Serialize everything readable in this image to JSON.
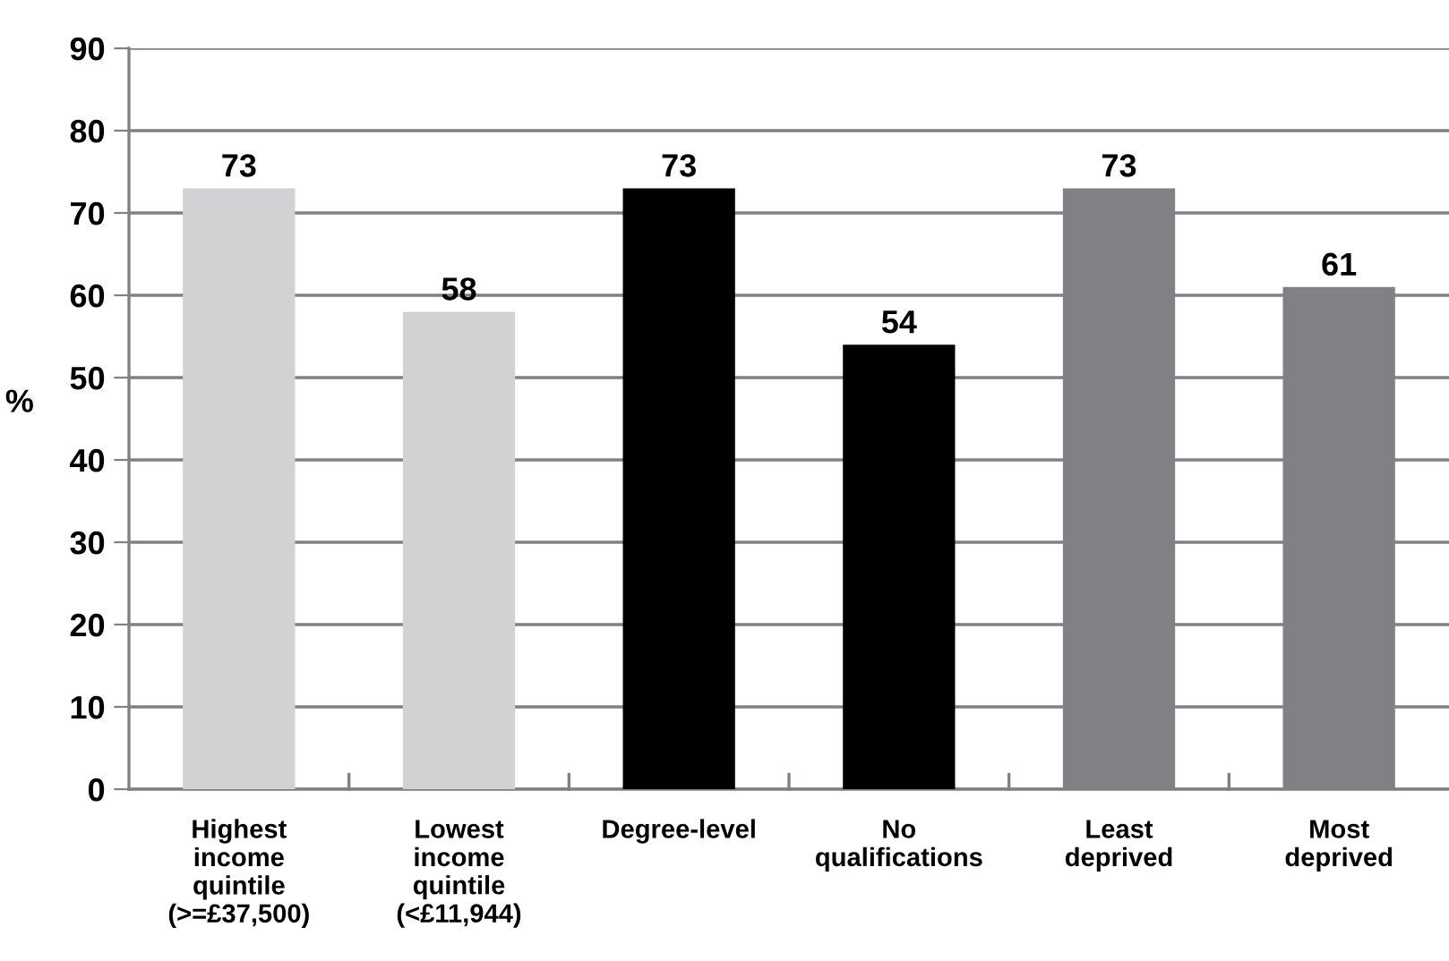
{
  "chart_data": {
    "type": "bar",
    "ylabel": "%",
    "categories": [
      "Highest\nincome\nquintile\n(>=£37,500)",
      "Lowest\nincome\nquintile\n(<£11,944)",
      "Degree-level",
      "No\nqualifications",
      "Least\ndeprived",
      "Most\ndeprived"
    ],
    "values": [
      73,
      58,
      73,
      54,
      73,
      61
    ],
    "colors": [
      "#d1d2d4",
      "#d1d2d4",
      "#000000",
      "#000000",
      "#808184",
      "#808184"
    ],
    "ylim": [
      0,
      90
    ],
    "yticks": [
      0,
      10,
      20,
      30,
      40,
      50,
      60,
      70,
      80,
      90
    ],
    "grid": "y",
    "data_labels": true
  }
}
